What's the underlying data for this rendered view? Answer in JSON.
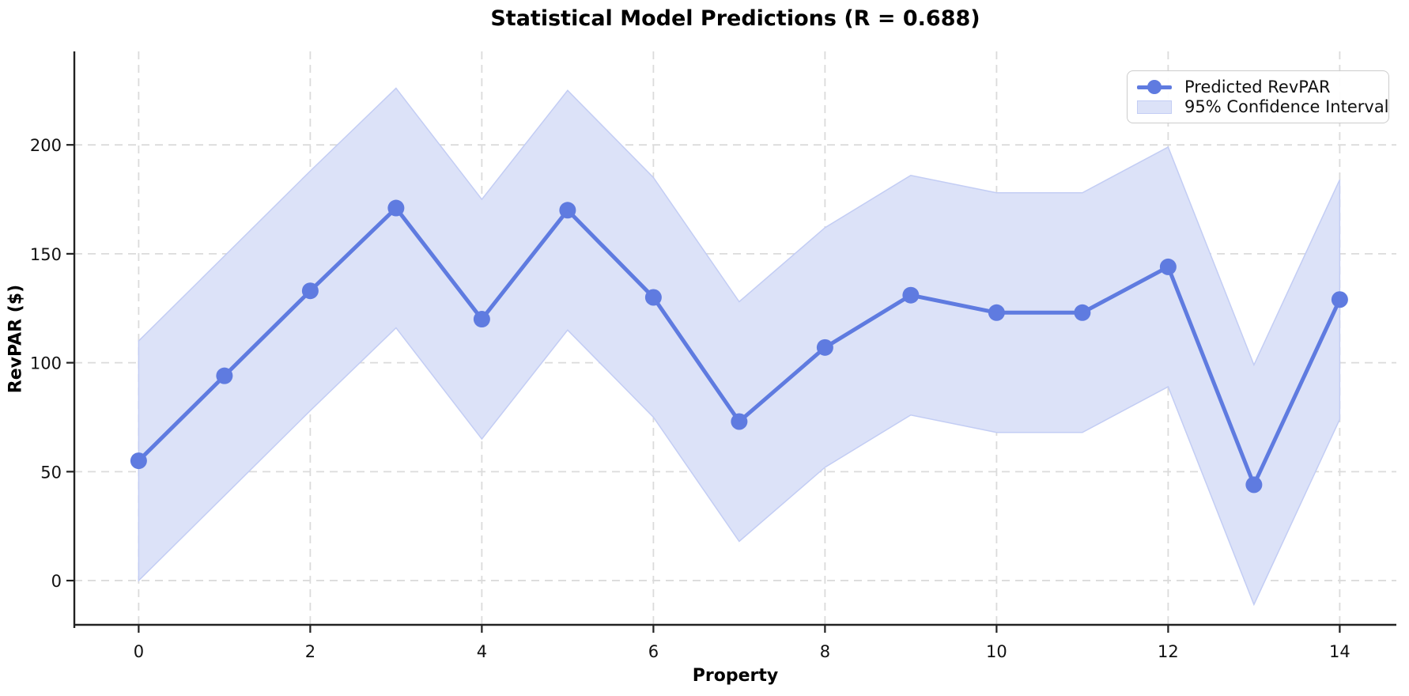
{
  "chart_data": {
    "type": "line",
    "title": "Statistical Model Predictions (R = 0.688)",
    "xlabel": "Property",
    "ylabel": "RevPAR ($)",
    "x": [
      0,
      1,
      2,
      3,
      4,
      5,
      6,
      7,
      8,
      9,
      10,
      11,
      12,
      13,
      14
    ],
    "series": [
      {
        "name": "Predicted RevPAR",
        "values": [
          55,
          94,
          133,
          171,
          120,
          170,
          130,
          73,
          107,
          131,
          123,
          123,
          144,
          44,
          129
        ]
      },
      {
        "name": "95% Confidence Interval",
        "lower": [
          0,
          39,
          78,
          116,
          65,
          115,
          75,
          18,
          52,
          76,
          68,
          68,
          89,
          -11,
          74
        ],
        "upper": [
          110,
          149,
          188,
          226,
          175,
          225,
          185,
          128,
          162,
          186,
          178,
          178,
          199,
          99,
          184
        ]
      }
    ],
    "x_ticks": [
      0,
      2,
      4,
      6,
      8,
      10,
      12,
      14
    ],
    "y_ticks": [
      0,
      50,
      100,
      150,
      200
    ],
    "xlim": [
      -0.75,
      14.66
    ],
    "ylim": [
      -20.3,
      242.9
    ],
    "grid": true,
    "legend_position": "upper right",
    "colors": {
      "line": "#5f7be0",
      "band_fill": "#dce2f8",
      "band_edge": "#c3cdf4",
      "grid": "#dbdbdb",
      "spine": "#222222",
      "tick_text": "#111111"
    }
  }
}
